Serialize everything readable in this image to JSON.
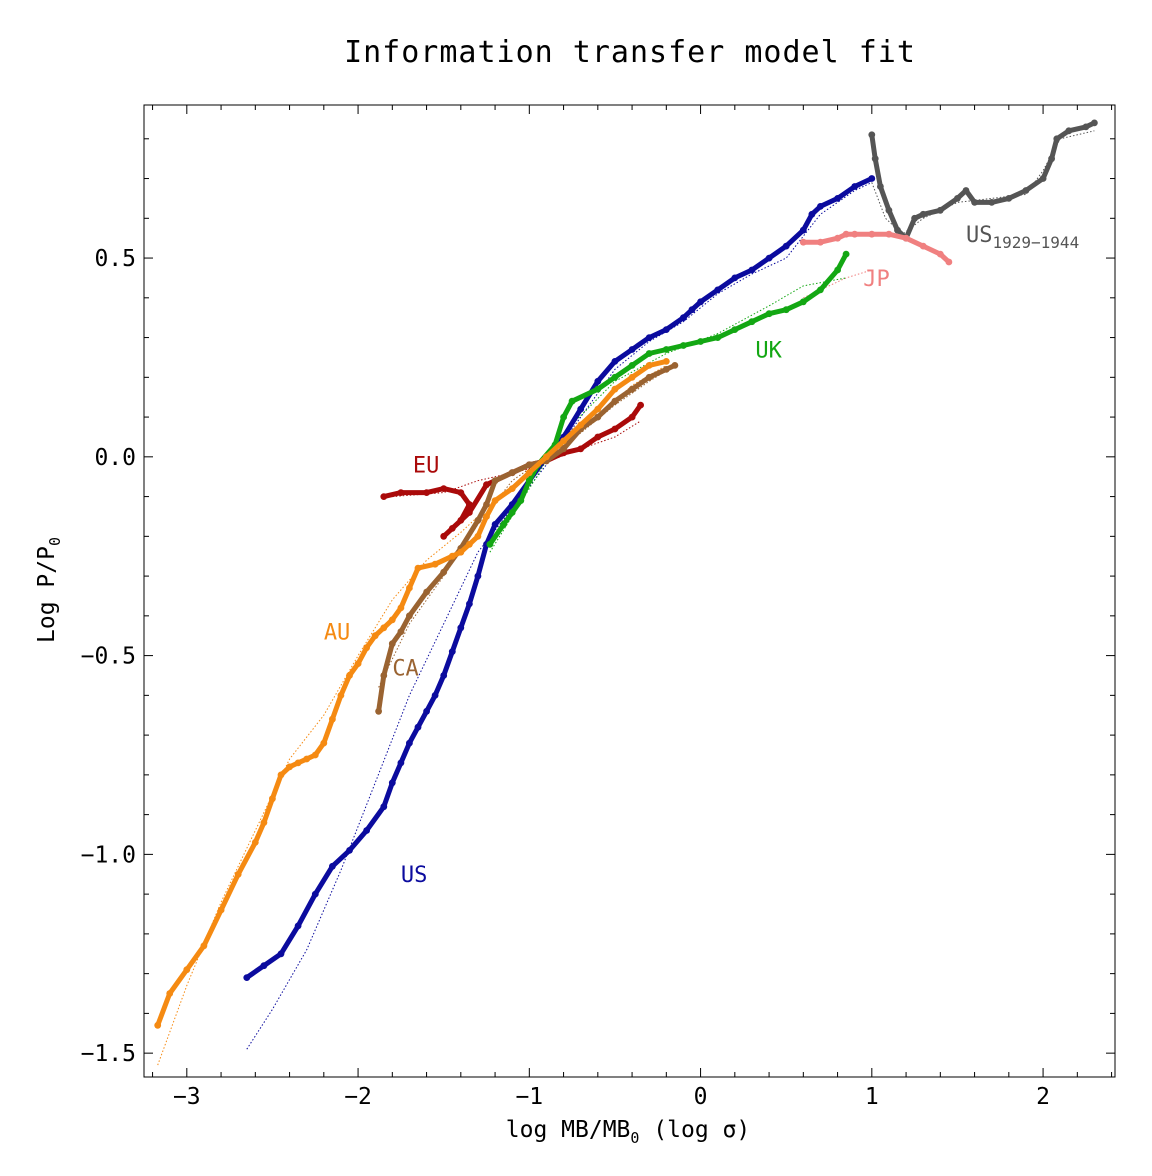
{
  "chart_data": {
    "type": "scatter",
    "title": "Information transfer model fit",
    "xlabel": "log MB/MB",
    "xlabel_sub": "0",
    "xlabel_suffix": "  (log σ)",
    "ylabel": "Log P/P",
    "ylabel_sub": "0",
    "xlim": [
      -3.25,
      2.42
    ],
    "ylim": [
      -1.56,
      0.885
    ],
    "xticks": [
      {
        "value": -3,
        "label": "−3"
      },
      {
        "value": -2,
        "label": "−2"
      },
      {
        "value": -1,
        "label": "−1"
      },
      {
        "value": 0,
        "label": "0"
      },
      {
        "value": 1,
        "label": "1"
      },
      {
        "value": 2,
        "label": "2"
      }
    ],
    "yticks": [
      {
        "value": 0.5,
        "label": "0.5"
      },
      {
        "value": 0.0,
        "label": "0.0"
      },
      {
        "value": -0.5,
        "label": "−0.5"
      },
      {
        "value": -1.0,
        "label": "−1.0"
      },
      {
        "value": -1.5,
        "label": "−1.5"
      }
    ],
    "grid": false,
    "series": [
      {
        "name": "US",
        "color": "#0b0b9e",
        "label_pos": [
          -1.75,
          -1.07
        ],
        "points": [
          [
            -2.65,
            -1.31
          ],
          [
            -2.55,
            -1.28
          ],
          [
            -2.45,
            -1.25
          ],
          [
            -2.35,
            -1.18
          ],
          [
            -2.25,
            -1.1
          ],
          [
            -2.15,
            -1.03
          ],
          [
            -2.05,
            -0.99
          ],
          [
            -1.95,
            -0.94
          ],
          [
            -1.85,
            -0.88
          ],
          [
            -1.8,
            -0.82
          ],
          [
            -1.75,
            -0.77
          ],
          [
            -1.7,
            -0.72
          ],
          [
            -1.65,
            -0.68
          ],
          [
            -1.6,
            -0.64
          ],
          [
            -1.55,
            -0.6
          ],
          [
            -1.5,
            -0.55
          ],
          [
            -1.45,
            -0.49
          ],
          [
            -1.4,
            -0.43
          ],
          [
            -1.35,
            -0.37
          ],
          [
            -1.3,
            -0.3
          ],
          [
            -1.25,
            -0.22
          ],
          [
            -1.2,
            -0.17
          ],
          [
            -1.1,
            -0.12
          ],
          [
            -1.0,
            -0.06
          ],
          [
            -0.9,
            0.0
          ],
          [
            -0.8,
            0.05
          ],
          [
            -0.7,
            0.12
          ],
          [
            -0.6,
            0.19
          ],
          [
            -0.5,
            0.24
          ],
          [
            -0.4,
            0.27
          ],
          [
            -0.3,
            0.3
          ],
          [
            -0.2,
            0.32
          ],
          [
            -0.1,
            0.35
          ],
          [
            -0.05,
            0.37
          ],
          [
            0.0,
            0.39
          ],
          [
            0.1,
            0.42
          ],
          [
            0.2,
            0.45
          ],
          [
            0.3,
            0.47
          ],
          [
            0.4,
            0.5
          ],
          [
            0.5,
            0.53
          ],
          [
            0.6,
            0.57
          ],
          [
            0.65,
            0.61
          ],
          [
            0.7,
            0.63
          ],
          [
            0.8,
            0.65
          ],
          [
            0.9,
            0.68
          ],
          [
            1.0,
            0.7
          ]
        ],
        "fit": [
          [
            -2.65,
            -1.49
          ],
          [
            -2.5,
            -1.39
          ],
          [
            -2.3,
            -1.24
          ],
          [
            -2.1,
            -1.04
          ],
          [
            -1.9,
            -0.82
          ],
          [
            -1.7,
            -0.6
          ],
          [
            -1.5,
            -0.42
          ],
          [
            -1.3,
            -0.24
          ],
          [
            -1.1,
            -0.13
          ],
          [
            -0.9,
            -0.02
          ],
          [
            -0.7,
            0.1
          ],
          [
            -0.5,
            0.22
          ],
          [
            -0.3,
            0.29
          ],
          [
            -0.1,
            0.34
          ],
          [
            0.1,
            0.41
          ],
          [
            0.3,
            0.46
          ],
          [
            0.5,
            0.5
          ],
          [
            0.7,
            0.61
          ],
          [
            0.9,
            0.67
          ],
          [
            1.0,
            0.69
          ]
        ]
      },
      {
        "name": "US",
        "name_sub": "1929−1944",
        "color": "#555555",
        "label_pos": [
          1.55,
          0.54
        ],
        "points": [
          [
            1.0,
            0.81
          ],
          [
            1.02,
            0.75
          ],
          [
            1.05,
            0.68
          ],
          [
            1.1,
            0.62
          ],
          [
            1.15,
            0.57
          ],
          [
            1.2,
            0.55
          ],
          [
            1.25,
            0.6
          ],
          [
            1.3,
            0.61
          ],
          [
            1.4,
            0.62
          ],
          [
            1.5,
            0.65
          ],
          [
            1.55,
            0.67
          ],
          [
            1.6,
            0.64
          ],
          [
            1.7,
            0.64
          ],
          [
            1.8,
            0.65
          ],
          [
            1.9,
            0.67
          ],
          [
            2.0,
            0.7
          ],
          [
            2.05,
            0.75
          ],
          [
            2.08,
            0.8
          ],
          [
            2.15,
            0.82
          ],
          [
            2.25,
            0.83
          ],
          [
            2.3,
            0.84
          ]
        ],
        "fit": [
          [
            1.0,
            0.69
          ],
          [
            1.08,
            0.6
          ],
          [
            1.18,
            0.56
          ],
          [
            1.3,
            0.6
          ],
          [
            1.5,
            0.64
          ],
          [
            1.7,
            0.65
          ],
          [
            1.9,
            0.66
          ],
          [
            2.0,
            0.72
          ],
          [
            2.1,
            0.8
          ],
          [
            2.3,
            0.82
          ]
        ]
      },
      {
        "name": "JP",
        "color": "#f08080",
        "label_pos": [
          0.95,
          0.43
        ],
        "points": [
          [
            0.6,
            0.54
          ],
          [
            0.7,
            0.54
          ],
          [
            0.8,
            0.55
          ],
          [
            0.85,
            0.56
          ],
          [
            0.9,
            0.56
          ],
          [
            1.0,
            0.56
          ],
          [
            1.1,
            0.56
          ],
          [
            1.2,
            0.55
          ],
          [
            1.3,
            0.53
          ],
          [
            1.4,
            0.51
          ],
          [
            1.45,
            0.49
          ]
        ],
        "fit": [
          [
            0.6,
            0.4
          ],
          [
            0.85,
            0.45
          ],
          [
            1.0,
            0.47
          ]
        ]
      },
      {
        "name": "UK",
        "color": "#13a713",
        "label_pos": [
          0.32,
          0.25
        ],
        "points": [
          [
            -1.23,
            -0.22
          ],
          [
            -1.15,
            -0.17
          ],
          [
            -1.1,
            -0.14
          ],
          [
            -1.05,
            -0.11
          ],
          [
            -1.0,
            -0.06
          ],
          [
            -0.95,
            -0.02
          ],
          [
            -0.85,
            0.03
          ],
          [
            -0.8,
            0.1
          ],
          [
            -0.75,
            0.14
          ],
          [
            -0.6,
            0.17
          ],
          [
            -0.5,
            0.2
          ],
          [
            -0.4,
            0.23
          ],
          [
            -0.3,
            0.26
          ],
          [
            -0.2,
            0.27
          ],
          [
            -0.1,
            0.28
          ],
          [
            0.0,
            0.29
          ],
          [
            0.1,
            0.3
          ],
          [
            0.2,
            0.32
          ],
          [
            0.3,
            0.34
          ],
          [
            0.4,
            0.36
          ],
          [
            0.5,
            0.37
          ],
          [
            0.6,
            0.39
          ],
          [
            0.7,
            0.42
          ],
          [
            0.8,
            0.47
          ],
          [
            0.85,
            0.51
          ]
        ],
        "fit": [
          [
            -1.23,
            -0.24
          ],
          [
            -1.0,
            -0.08
          ],
          [
            -0.8,
            0.06
          ],
          [
            -0.5,
            0.19
          ],
          [
            -0.2,
            0.26
          ],
          [
            0.1,
            0.31
          ],
          [
            0.4,
            0.38
          ],
          [
            0.6,
            0.43
          ],
          [
            0.85,
            0.45
          ]
        ]
      },
      {
        "name": "EU",
        "color": "#aa0a0a",
        "label_pos": [
          -1.68,
          -0.04
        ],
        "points": [
          [
            -1.85,
            -0.1
          ],
          [
            -1.75,
            -0.09
          ],
          [
            -1.6,
            -0.09
          ],
          [
            -1.5,
            -0.08
          ],
          [
            -1.4,
            -0.09
          ],
          [
            -1.35,
            -0.12
          ],
          [
            -1.4,
            -0.16
          ],
          [
            -1.5,
            -0.2
          ],
          [
            -1.45,
            -0.18
          ],
          [
            -1.35,
            -0.14
          ],
          [
            -1.25,
            -0.07
          ],
          [
            -1.1,
            -0.04
          ],
          [
            -1.0,
            -0.02
          ],
          [
            -0.9,
            -0.01
          ],
          [
            -0.8,
            0.01
          ],
          [
            -0.7,
            0.02
          ],
          [
            -0.6,
            0.05
          ],
          [
            -0.5,
            0.07
          ],
          [
            -0.4,
            0.1
          ],
          [
            -0.35,
            0.13
          ]
        ],
        "fit": [
          [
            -1.8,
            -0.1
          ],
          [
            -1.5,
            -0.09
          ],
          [
            -1.3,
            -0.06
          ],
          [
            -1.0,
            -0.03
          ],
          [
            -0.7,
            0.02
          ],
          [
            -0.5,
            0.05
          ],
          [
            -0.35,
            0.09
          ]
        ]
      },
      {
        "name": "CA",
        "color": "#9a6331",
        "label_pos": [
          -1.8,
          -0.55
        ],
        "points": [
          [
            -1.88,
            -0.64
          ],
          [
            -1.85,
            -0.55
          ],
          [
            -1.8,
            -0.47
          ],
          [
            -1.75,
            -0.44
          ],
          [
            -1.7,
            -0.4
          ],
          [
            -1.6,
            -0.34
          ],
          [
            -1.5,
            -0.29
          ],
          [
            -1.4,
            -0.23
          ],
          [
            -1.3,
            -0.16
          ],
          [
            -1.25,
            -0.12
          ],
          [
            -1.2,
            -0.06
          ],
          [
            -1.1,
            -0.04
          ],
          [
            -1.0,
            -0.02
          ],
          [
            -0.9,
            -0.01
          ],
          [
            -0.8,
            0.02
          ],
          [
            -0.7,
            0.07
          ],
          [
            -0.6,
            0.1
          ],
          [
            -0.5,
            0.14
          ],
          [
            -0.4,
            0.17
          ],
          [
            -0.3,
            0.2
          ],
          [
            -0.2,
            0.22
          ],
          [
            -0.15,
            0.23
          ]
        ],
        "fit": [
          [
            -1.88,
            -0.58
          ],
          [
            -1.7,
            -0.42
          ],
          [
            -1.5,
            -0.3
          ],
          [
            -1.3,
            -0.17
          ],
          [
            -1.1,
            -0.06
          ],
          [
            -0.9,
            0.0
          ],
          [
            -0.7,
            0.06
          ],
          [
            -0.5,
            0.13
          ],
          [
            -0.3,
            0.19
          ],
          [
            -0.15,
            0.23
          ]
        ]
      },
      {
        "name": "AU",
        "color": "#f58a12",
        "label_pos": [
          -2.2,
          -0.46
        ],
        "points": [
          [
            -3.17,
            -1.43
          ],
          [
            -3.1,
            -1.35
          ],
          [
            -3.0,
            -1.29
          ],
          [
            -2.9,
            -1.23
          ],
          [
            -2.8,
            -1.14
          ],
          [
            -2.7,
            -1.05
          ],
          [
            -2.6,
            -0.97
          ],
          [
            -2.55,
            -0.92
          ],
          [
            -2.5,
            -0.86
          ],
          [
            -2.45,
            -0.8
          ],
          [
            -2.4,
            -0.78
          ],
          [
            -2.35,
            -0.77
          ],
          [
            -2.3,
            -0.76
          ],
          [
            -2.25,
            -0.75
          ],
          [
            -2.2,
            -0.72
          ],
          [
            -2.15,
            -0.66
          ],
          [
            -2.1,
            -0.6
          ],
          [
            -2.05,
            -0.55
          ],
          [
            -2.0,
            -0.52
          ],
          [
            -1.95,
            -0.48
          ],
          [
            -1.9,
            -0.45
          ],
          [
            -1.85,
            -0.43
          ],
          [
            -1.8,
            -0.41
          ],
          [
            -1.75,
            -0.38
          ],
          [
            -1.7,
            -0.33
          ],
          [
            -1.65,
            -0.28
          ],
          [
            -1.55,
            -0.27
          ],
          [
            -1.45,
            -0.25
          ],
          [
            -1.4,
            -0.24
          ],
          [
            -1.35,
            -0.22
          ],
          [
            -1.3,
            -0.2
          ],
          [
            -1.25,
            -0.15
          ],
          [
            -1.2,
            -0.11
          ],
          [
            -1.1,
            -0.08
          ],
          [
            -1.0,
            -0.04
          ],
          [
            -0.9,
            0.0
          ],
          [
            -0.8,
            0.04
          ],
          [
            -0.7,
            0.08
          ],
          [
            -0.6,
            0.12
          ],
          [
            -0.5,
            0.17
          ],
          [
            -0.4,
            0.2
          ],
          [
            -0.3,
            0.23
          ],
          [
            -0.2,
            0.24
          ]
        ],
        "fit": [
          [
            -3.17,
            -1.53
          ],
          [
            -3.0,
            -1.33
          ],
          [
            -2.8,
            -1.12
          ],
          [
            -2.6,
            -0.94
          ],
          [
            -2.4,
            -0.76
          ],
          [
            -2.2,
            -0.65
          ],
          [
            -2.0,
            -0.5
          ],
          [
            -1.8,
            -0.36
          ],
          [
            -1.6,
            -0.26
          ],
          [
            -1.4,
            -0.19
          ],
          [
            -1.2,
            -0.11
          ],
          [
            -1.0,
            -0.04
          ],
          [
            -0.8,
            0.03
          ],
          [
            -0.6,
            0.1
          ],
          [
            -0.4,
            0.18
          ],
          [
            -0.2,
            0.23
          ]
        ]
      }
    ]
  }
}
